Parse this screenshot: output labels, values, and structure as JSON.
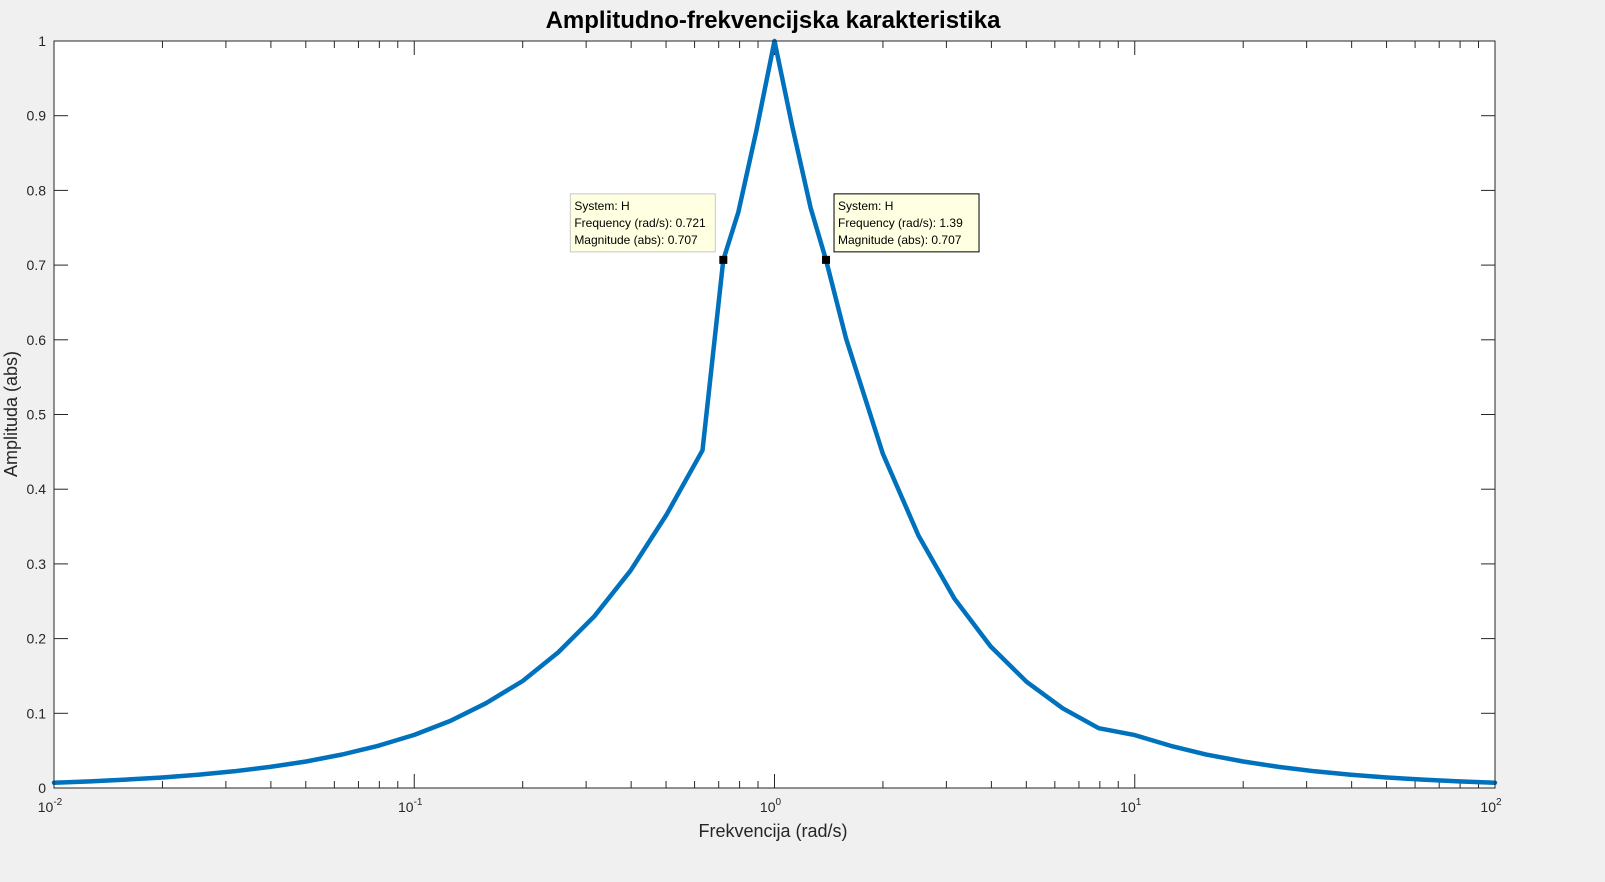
{
  "colors": {
    "figure_background": "#f0f0f0",
    "axes_background": "#ffffff",
    "axes_edge": "#262626",
    "series": "#0072bd",
    "datatip_background": "#ffffe1",
    "marker": "#000000"
  },
  "chart_data": {
    "type": "line",
    "title": "Amplitudno-frekvencijska karakteristika",
    "xlabel": "Frekvencija  (rad/s)",
    "ylabel": "Amplituda (abs)",
    "xscale": "log",
    "xlim": [
      0.01,
      100
    ],
    "ylim": [
      0,
      1
    ],
    "grid": false,
    "x_ticks": [
      {
        "base": "10",
        "exp": "-2",
        "value": 0.01
      },
      {
        "base": "10",
        "exp": "-1",
        "value": 0.1
      },
      {
        "base": "10",
        "exp": "0",
        "value": 1
      },
      {
        "base": "10",
        "exp": "1",
        "value": 10
      },
      {
        "base": "10",
        "exp": "2",
        "value": 100
      }
    ],
    "y_ticks": [
      "0",
      "0.1",
      "0.2",
      "0.3",
      "0.4",
      "0.5",
      "0.6",
      "0.7",
      "0.8",
      "0.9",
      "1"
    ],
    "series": [
      {
        "color": "#0072bd",
        "x": [
          0.01,
          0.0126,
          0.0158,
          0.02,
          0.0251,
          0.0316,
          0.0398,
          0.0501,
          0.0631,
          0.0794,
          0.1,
          0.126,
          0.158,
          0.2,
          0.251,
          0.316,
          0.398,
          0.501,
          0.631,
          0.721,
          0.794,
          0.891,
          1,
          1.12,
          1.26,
          1.39,
          1.58,
          2,
          2.51,
          3.16,
          3.98,
          5.01,
          6.31,
          7.94,
          10,
          12.6,
          15.8,
          20,
          25.1,
          31.6,
          39.8,
          50.1,
          63.1,
          79.4,
          100
        ],
        "y": [
          0.0071,
          0.0089,
          0.0112,
          0.0141,
          0.0178,
          0.0224,
          0.0282,
          0.0355,
          0.0448,
          0.0565,
          0.0711,
          0.0898,
          0.1134,
          0.1433,
          0.1815,
          0.2299,
          0.2908,
          0.3656,
          0.4521,
          0.707,
          0.7712,
          0.8801,
          1.0,
          0.8861,
          0.7763,
          0.707,
          0.6015,
          0.4472,
          0.3379,
          0.2534,
          0.1896,
          0.1422,
          0.1067,
          0.0801,
          0.0708,
          0.0563,
          0.0447,
          0.0355,
          0.0282,
          0.0224,
          0.0178,
          0.0141,
          0.0112,
          0.0089,
          0.0071
        ]
      }
    ],
    "datatips": [
      {
        "system": "System: H",
        "frequency": "Frequency (rad/s): 0.721",
        "magnitude": "Magnitude (abs): 0.707",
        "x": 0.721,
        "y": 0.707,
        "side": "left"
      },
      {
        "system": "System: H",
        "frequency": "Frequency (rad/s): 1.39",
        "magnitude": "Magnitude (abs): 0.707",
        "x": 1.39,
        "y": 0.707,
        "side": "right"
      }
    ]
  }
}
